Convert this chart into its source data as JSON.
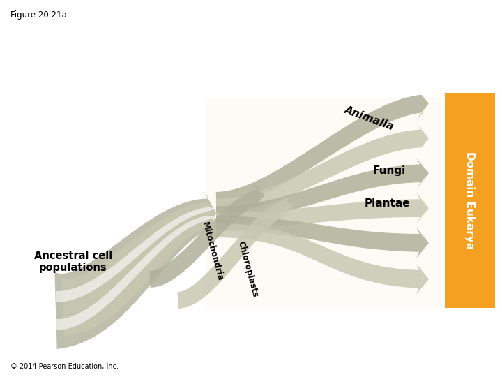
{
  "title": "Figure 20.21a",
  "copyright": "© 2014 Pearson Education, Inc.",
  "background_color": "#ffffff",
  "arrow_color_dark": "#b0b09a",
  "arrow_color_light": "#c8c8b2",
  "orange_box_color": "#f5a020",
  "domain_text": "Domain Eukarya",
  "labels": {
    "animalia": "Animalia",
    "fungi": "Fungi",
    "plantae": "Plantae",
    "mitochondria": "Mitochondria",
    "chloroplasts": "Chloroplasts",
    "ancestral": "Ancestral cell\npopulations"
  },
  "figsize": [
    7.2,
    5.4
  ],
  "dpi": 100
}
